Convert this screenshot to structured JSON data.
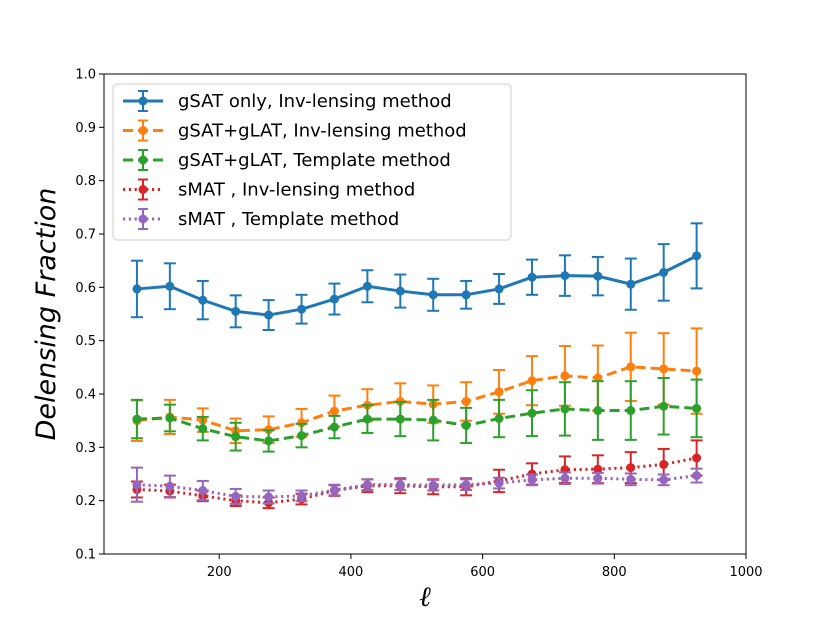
{
  "chart_data": {
    "type": "line",
    "title": "",
    "xlabel": "ℓ",
    "ylabel": "Delensing Fraction",
    "xlim": [
      25,
      1000
    ],
    "ylim": [
      0.1,
      1.0
    ],
    "xticks": [
      200,
      400,
      600,
      800,
      1000
    ],
    "yticks": [
      0.1,
      0.2,
      0.3,
      0.4,
      0.5,
      0.6,
      0.7,
      0.8,
      0.9,
      1.0
    ],
    "xtick_labels": [
      "200",
      "400",
      "600",
      "800",
      "1000"
    ],
    "ytick_labels": [
      "0.1",
      "0.2",
      "0.3",
      "0.4",
      "0.5",
      "0.6",
      "0.7",
      "0.8",
      "0.9",
      "1.0"
    ],
    "grid": false,
    "legend_position": "top-left",
    "x": [
      75,
      125,
      175,
      225,
      275,
      325,
      375,
      425,
      475,
      525,
      575,
      625,
      675,
      725,
      775,
      825,
      875,
      925
    ],
    "series": [
      {
        "name": "gSAT only, Inv-lensing method",
        "color": "#1f77b4",
        "style": "solid",
        "values": [
          0.597,
          0.602,
          0.576,
          0.555,
          0.548,
          0.559,
          0.578,
          0.602,
          0.593,
          0.586,
          0.586,
          0.597,
          0.619,
          0.622,
          0.621,
          0.606,
          0.628,
          0.659
        ],
        "errors": [
          0.053,
          0.043,
          0.036,
          0.03,
          0.028,
          0.027,
          0.029,
          0.03,
          0.031,
          0.03,
          0.026,
          0.028,
          0.033,
          0.038,
          0.036,
          0.048,
          0.053,
          0.061
        ]
      },
      {
        "name": "gSAT+gLAT, Inv-lensing method",
        "color": "#ff7f0e",
        "style": "dashed",
        "values": [
          0.35,
          0.357,
          0.351,
          0.331,
          0.333,
          0.346,
          0.368,
          0.379,
          0.386,
          0.381,
          0.386,
          0.404,
          0.425,
          0.434,
          0.43,
          0.451,
          0.447,
          0.443
        ],
        "errors": [
          0.038,
          0.032,
          0.022,
          0.023,
          0.025,
          0.026,
          0.029,
          0.03,
          0.034,
          0.035,
          0.036,
          0.041,
          0.046,
          0.056,
          0.061,
          0.064,
          0.067,
          0.08
        ]
      },
      {
        "name": "gSAT+gLAT, Template method",
        "color": "#2ca02c",
        "style": "dashed",
        "values": [
          0.353,
          0.355,
          0.335,
          0.32,
          0.312,
          0.322,
          0.338,
          0.353,
          0.353,
          0.351,
          0.341,
          0.354,
          0.364,
          0.372,
          0.369,
          0.369,
          0.377,
          0.373
        ],
        "errors": [
          0.036,
          0.025,
          0.022,
          0.026,
          0.02,
          0.022,
          0.021,
          0.026,
          0.032,
          0.038,
          0.033,
          0.035,
          0.043,
          0.05,
          0.055,
          0.055,
          0.053,
          0.054
        ]
      },
      {
        "name": "sMAT , Inv-lensing method",
        "color": "#d62728",
        "style": "dotted",
        "values": [
          0.221,
          0.218,
          0.209,
          0.2,
          0.196,
          0.203,
          0.219,
          0.228,
          0.228,
          0.226,
          0.226,
          0.237,
          0.25,
          0.258,
          0.259,
          0.262,
          0.268,
          0.28
        ],
        "errors": [
          0.015,
          0.012,
          0.01,
          0.01,
          0.01,
          0.01,
          0.01,
          0.012,
          0.014,
          0.014,
          0.016,
          0.021,
          0.02,
          0.025,
          0.026,
          0.029,
          0.029,
          0.033
        ]
      },
      {
        "name": "sMAT , Template method",
        "color": "#9467bd",
        "style": "dotted",
        "values": [
          0.23,
          0.227,
          0.219,
          0.208,
          0.207,
          0.209,
          0.22,
          0.23,
          0.23,
          0.229,
          0.23,
          0.233,
          0.239,
          0.242,
          0.242,
          0.24,
          0.239,
          0.247
        ],
        "errors": [
          0.032,
          0.02,
          0.018,
          0.014,
          0.012,
          0.01,
          0.01,
          0.01,
          0.01,
          0.01,
          0.01,
          0.01,
          0.01,
          0.011,
          0.01,
          0.011,
          0.01,
          0.013
        ]
      }
    ]
  }
}
